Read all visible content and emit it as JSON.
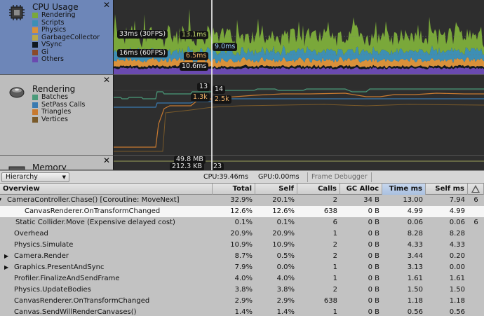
{
  "modules": {
    "cpu": {
      "title": "CPU Usage",
      "legend": [
        {
          "label": "Rendering",
          "color": "#7aa83a"
        },
        {
          "label": "Scripts",
          "color": "#3d8fb5"
        },
        {
          "label": "Physics",
          "color": "#d9913a"
        },
        {
          "label": "GarbageCollector",
          "color": "#b9a84a"
        },
        {
          "label": "VSync",
          "color": "#101820"
        },
        {
          "label": "Gi",
          "color": "#8a4a2a"
        },
        {
          "label": "Others",
          "color": "#6a4ab0"
        }
      ],
      "markers": {
        "fps30": "33ms (30FPS)",
        "fps60": "16ms (60FPS)",
        "rendering_value": "13.1ms",
        "physics_value": "6.5ms",
        "others_value": "10.6ms",
        "scripts_value": "9.0ms"
      }
    },
    "rendering": {
      "title": "Rendering",
      "legend": [
        {
          "label": "Batches",
          "color": "#4a9a7a"
        },
        {
          "label": "SetPass Calls",
          "color": "#3a7ab0"
        },
        {
          "label": "Triangles",
          "color": "#c87a30"
        },
        {
          "label": "Vertices",
          "color": "#7a5a2a"
        }
      ],
      "markers": {
        "batches_a": "13",
        "batches_b": "14",
        "tris_a": "1.3k",
        "tris_b": "2.5k"
      }
    },
    "memory": {
      "title": "Memory",
      "markers": {
        "mem_a": "49.8 MB",
        "mem_b": "212.3 KB",
        "mem_c": "23"
      }
    }
  },
  "toolbar": {
    "view": "Hierarchy",
    "cpu_stat": "CPU:39.46ms",
    "gpu_stat": "GPU:0.00ms",
    "frame_debugger": "Frame Debugger"
  },
  "columns": {
    "name": "Overview",
    "total": "Total",
    "self": "Self",
    "calls": "Calls",
    "gc": "GC Alloc",
    "time": "Time ms",
    "self_ms": "Self ms"
  },
  "rows": [
    {
      "name": "CameraController.Chase() [Coroutine: MoveNext]",
      "total": "32.9%",
      "self": "20.1%",
      "calls": "2",
      "gc": "34 B",
      "time": "13.00",
      "self_ms": "7.94",
      "warn": "6"
    },
    {
      "name": "CanvasRenderer.OnTransformChanged",
      "total": "12.6%",
      "self": "12.6%",
      "calls": "638",
      "gc": "0 B",
      "time": "4.99",
      "self_ms": "4.99",
      "warn": ""
    },
    {
      "name": "Static Collider.Move (Expensive delayed cost)",
      "total": "0.1%",
      "self": "0.1%",
      "calls": "6",
      "gc": "0 B",
      "time": "0.06",
      "self_ms": "0.06",
      "warn": "6"
    },
    {
      "name": "Overhead",
      "total": "20.9%",
      "self": "20.9%",
      "calls": "1",
      "gc": "0 B",
      "time": "8.28",
      "self_ms": "8.28",
      "warn": ""
    },
    {
      "name": "Physics.Simulate",
      "total": "10.9%",
      "self": "10.9%",
      "calls": "2",
      "gc": "0 B",
      "time": "4.33",
      "self_ms": "4.33",
      "warn": ""
    },
    {
      "name": "Camera.Render",
      "total": "8.7%",
      "self": "0.5%",
      "calls": "2",
      "gc": "0 B",
      "time": "3.44",
      "self_ms": "0.20",
      "warn": ""
    },
    {
      "name": "Graphics.PresentAndSync",
      "total": "7.9%",
      "self": "0.0%",
      "calls": "1",
      "gc": "0 B",
      "time": "3.13",
      "self_ms": "0.00",
      "warn": ""
    },
    {
      "name": "Profiler.FinalizeAndSendFrame",
      "total": "4.0%",
      "self": "4.0%",
      "calls": "1",
      "gc": "0 B",
      "time": "1.61",
      "self_ms": "1.61",
      "warn": ""
    },
    {
      "name": "Physics.UpdateBodies",
      "total": "3.8%",
      "self": "3.8%",
      "calls": "2",
      "gc": "0 B",
      "time": "1.50",
      "self_ms": "1.50",
      "warn": ""
    },
    {
      "name": "CanvasRenderer.OnTransformChanged",
      "total": "2.9%",
      "self": "2.9%",
      "calls": "638",
      "gc": "0 B",
      "time": "1.18",
      "self_ms": "1.18",
      "warn": ""
    },
    {
      "name": "Canvas.SendWillRenderCanvases()",
      "total": "1.4%",
      "self": "1.4%",
      "calls": "1",
      "gc": "0 B",
      "time": "0.56",
      "self_ms": "0.56",
      "warn": ""
    }
  ]
}
